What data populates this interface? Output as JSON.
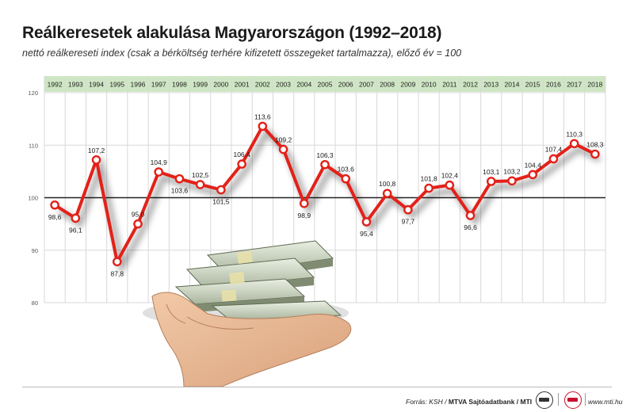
{
  "header": {
    "title": "Reálkeresetek alakulása Magyarországon (1992–2018)",
    "subtitle": "nettó reálkereseti index (csak a bérköltség terhére kifizetett összegeket tartalmazza), előző év = 100"
  },
  "footer": {
    "source_prefix": "Forrás: KSH / ",
    "source_bold": "MTVA Sajtóadatbank / MTI",
    "url": "www.mti.hu",
    "logos": [
      "mtva-logo-icon",
      "mti-logo-icon"
    ]
  },
  "colors": {
    "line": "#e32119",
    "marker_fill": "#ffffff",
    "year_band": "#cfe6c4",
    "baseline": "#222222",
    "grid": "#d8d8d8"
  },
  "illustration": {
    "icon": "hand-holding-money-icon"
  },
  "chart_data": {
    "type": "line",
    "title": "Reálkeresetek alakulása Magyarországon (1992–2018)",
    "categories": [
      "1992",
      "1993",
      "1994",
      "1995",
      "1996",
      "1997",
      "1998",
      "1999",
      "2000",
      "2001",
      "2002",
      "2003",
      "2004",
      "2005",
      "2006",
      "2007",
      "2008",
      "2009",
      "2010",
      "2011",
      "2012",
      "2013",
      "2014",
      "2015",
      "2016",
      "2017",
      "2018"
    ],
    "values": [
      98.6,
      96.1,
      107.2,
      87.8,
      95.0,
      104.9,
      103.6,
      102.5,
      101.5,
      106.4,
      113.6,
      109.2,
      98.9,
      106.3,
      103.6,
      95.4,
      100.8,
      97.7,
      101.8,
      102.4,
      96.6,
      103.1,
      103.2,
      104.4,
      107.4,
      110.3,
      108.3
    ],
    "value_labels": [
      "98,6",
      "96,1",
      "107,2",
      "87,8",
      "95,0",
      "104,9",
      "103,6",
      "102,5",
      "101,5",
      "106,4",
      "113,6",
      "109,2",
      "98,9",
      "106,3",
      "103,6",
      "95,4",
      "100,8",
      "97,7",
      "101,8",
      "102,4",
      "96,6",
      "103,1",
      "103,2",
      "104,4",
      "107,4",
      "110,3",
      "108,3"
    ],
    "label_positions": [
      "below",
      "below",
      "above",
      "below",
      "above",
      "above",
      "below",
      "above",
      "below",
      "above",
      "above",
      "above",
      "below",
      "above",
      "above",
      "below",
      "above",
      "below",
      "above",
      "above",
      "below",
      "above",
      "above",
      "above",
      "above",
      "above",
      "above"
    ],
    "y_ticks": [
      120,
      110,
      100,
      90,
      80
    ],
    "ylim": [
      80,
      120
    ],
    "reference_value": 100,
    "grid": true,
    "legend": "none"
  }
}
